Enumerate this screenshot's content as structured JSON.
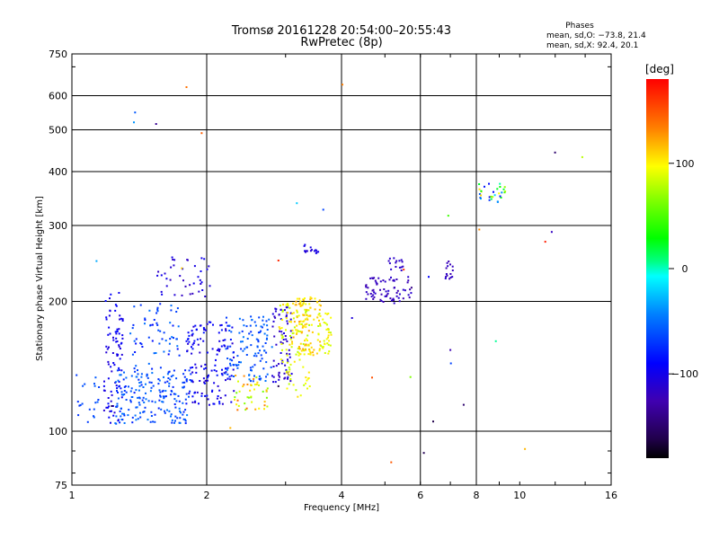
{
  "title": {
    "line1": "Tromsø 20161228 20:54:00–20:55:43",
    "line2": "RwPretec (8p)"
  },
  "stats": {
    "heading": "Phases",
    "line_o": "mean, sd,O: −73.8, 21.4",
    "line_x": "mean, sd,X:  92.4, 20.1"
  },
  "colorbar": {
    "unit": "[deg]",
    "range": [
      -180,
      180
    ],
    "ticks": [
      {
        "value": 100,
        "label": "100"
      },
      {
        "value": 0,
        "label": "0"
      },
      {
        "value": -100,
        "label": "−100"
      }
    ]
  },
  "chart_data": {
    "type": "scatter",
    "title": "Tromsø 20161228 20:54:00–20:55:43 RwPretec (8p)",
    "xlabel": "Frequency [MHz]",
    "ylabel": "Stationary phase Virtual Height [km]",
    "xscale": "log",
    "yscale": "log",
    "xlim": [
      1,
      16
    ],
    "ylim": [
      75,
      750
    ],
    "xticks": [
      {
        "v": 1,
        "label": "1"
      },
      {
        "v": 2,
        "label": "2"
      },
      {
        "v": 4,
        "label": "4"
      },
      {
        "v": 6,
        "label": "6"
      },
      {
        "v": 8,
        "label": "8"
      },
      {
        "v": 10,
        "label": "10"
      },
      {
        "v": 16,
        "label": "16"
      }
    ],
    "xgrid": [
      2,
      4,
      6,
      8
    ],
    "yticks": [
      {
        "v": 75,
        "label": "75"
      },
      {
        "v": 100,
        "label": "100"
      },
      {
        "v": 200,
        "label": "200"
      },
      {
        "v": 300,
        "label": "300"
      },
      {
        "v": 400,
        "label": "400"
      },
      {
        "v": 500,
        "label": "500"
      },
      {
        "v": 600,
        "label": "600"
      },
      {
        "v": 750,
        "label": "750"
      }
    ],
    "ygrid": [
      100,
      200,
      300,
      400,
      500,
      600
    ],
    "grid": true,
    "color_by": "phase [deg]",
    "clusters": [
      {
        "x": [
          1.0,
          1.15
        ],
        "y": [
          102,
          140
        ],
        "phase": [
          -55,
          -75
        ],
        "n": 20
      },
      {
        "x": [
          1.18,
          1.3
        ],
        "y": [
          104,
          210
        ],
        "phase": [
          -85,
          -110
        ],
        "n": 90
      },
      {
        "x": [
          1.25,
          1.85
        ],
        "y": [
          104,
          140
        ],
        "phase": [
          -45,
          -80
        ],
        "n": 200
      },
      {
        "x": [
          1.35,
          1.75
        ],
        "y": [
          140,
          200
        ],
        "phase": [
          -45,
          -90
        ],
        "n": 60
      },
      {
        "x": [
          1.55,
          2.05
        ],
        "y": [
          205,
          255
        ],
        "phase": [
          -95,
          -120
        ],
        "n": 40
      },
      {
        "x": [
          1.8,
          2.3
        ],
        "y": [
          115,
          180
        ],
        "phase": [
          -80,
          -115
        ],
        "n": 140
      },
      {
        "x": [
          2.3,
          2.75
        ],
        "y": [
          112,
          135
        ],
        "phase": [
          60,
          145
        ],
        "n": 45
      },
      {
        "x": [
          2.2,
          2.8
        ],
        "y": [
          130,
          185
        ],
        "phase": [
          -45,
          -75
        ],
        "n": 110
      },
      {
        "x": [
          2.8,
          3.1
        ],
        "y": [
          130,
          195
        ],
        "phase": [
          -100,
          -120
        ],
        "n": 70
      },
      {
        "x": [
          2.9,
          3.4
        ],
        "y": [
          120,
          200
        ],
        "phase": [
          75,
          110
        ],
        "n": 110
      },
      {
        "x": [
          3.1,
          3.6
        ],
        "y": [
          150,
          205
        ],
        "phase": [
          95,
          125
        ],
        "n": 90
      },
      {
        "x": [
          3.55,
          3.8
        ],
        "y": [
          150,
          190
        ],
        "phase": [
          80,
          105
        ],
        "n": 40
      },
      {
        "x": [
          3.3,
          3.55
        ],
        "y": [
          258,
          272
        ],
        "phase": [
          -100,
          -110
        ],
        "n": 15
      },
      {
        "x": [
          4.5,
          5.8
        ],
        "y": [
          198,
          228
        ],
        "phase": [
          -110,
          -125
        ],
        "n": 70
      },
      {
        "x": [
          5.1,
          5.5
        ],
        "y": [
          235,
          255
        ],
        "phase": [
          -110,
          -120
        ],
        "n": 15
      },
      {
        "x": [
          6.8,
          7.1
        ],
        "y": [
          225,
          250
        ],
        "phase": [
          -110,
          -125
        ],
        "n": 15
      },
      {
        "x": [
          8.0,
          9.3
        ],
        "y": [
          340,
          375
        ],
        "phase": [
          -100,
          110
        ],
        "n": 30
      },
      {
        "x": [
          1.0,
          14.0
        ],
        "y": [
          80,
          640
        ],
        "phase": [
          -180,
          180
        ],
        "n": 35
      }
    ]
  }
}
